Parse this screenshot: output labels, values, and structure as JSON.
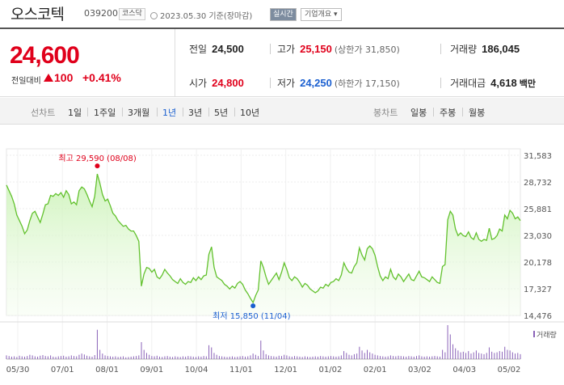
{
  "header": {
    "name": "오스코텍",
    "code": "039200",
    "market": "코스닥",
    "date": "2023.05.30 기준(장마감)",
    "live_btn": "실시간",
    "company_btn": "기업개요 ▾"
  },
  "summary": {
    "price": "24,600",
    "change_label": "전일대비",
    "change_value": "100",
    "change_pct": "+0.41%",
    "prev_label": "전일",
    "prev_value": "24,500",
    "high_label": "고가",
    "high_value": "25,150",
    "high_sub": "(상한가 31,850)",
    "volume_label": "거래량",
    "volume_value": "186,045",
    "open_label": "시가",
    "open_value": "24,800",
    "low_label": "저가",
    "low_value": "24,250",
    "low_sub": "(하한가 17,150)",
    "amount_label": "거래대금",
    "amount_value": "4,618",
    "amount_unit": "백만"
  },
  "tabs": {
    "line_label": "선차트",
    "periods": [
      "1일",
      "1주일",
      "3개월",
      "1년",
      "3년",
      "5년",
      "10년"
    ],
    "active": "1년",
    "candle_label": "봉차트",
    "candles": [
      "일봉",
      "주봉",
      "월봉"
    ]
  },
  "chart_data": {
    "type": "area",
    "y_ticks": [
      "31,583",
      "28,732",
      "25,881",
      "23,030",
      "20,178",
      "17,327",
      "14,476"
    ],
    "ylim": [
      14476,
      31583
    ],
    "x_ticks": [
      "05/30",
      "07/01",
      "08/01",
      "09/01",
      "10/04",
      "11/01",
      "12/01",
      "01/02",
      "02/01",
      "03/02",
      "04/03",
      "05/02"
    ],
    "high_annotation": "최고 29,590 (08/08)",
    "low_annotation": "최저 15,850 (11/04)",
    "volume_legend": "거래량",
    "series": [
      {
        "values": [
          28400,
          27800,
          27200,
          26400,
          25200,
          24600,
          24000,
          23200,
          23600,
          24600,
          25400,
          25600,
          25000,
          24400,
          25300,
          26300,
          26400,
          27300,
          27200,
          27500,
          27300,
          27600,
          27100,
          27800,
          27400,
          26400,
          26600,
          26300,
          27800,
          28200,
          28000,
          27400,
          26700,
          26100,
          27200,
          29590,
          28600,
          27400,
          26700,
          26900,
          26200,
          25400,
          25100,
          24600,
          24300,
          24000,
          24100,
          23700,
          23500,
          23500,
          23000,
          22400,
          17600,
          18900,
          19600,
          19500,
          19100,
          19400,
          18600,
          18400,
          18800,
          19400,
          19000,
          18700,
          18300,
          18100,
          17900,
          18400,
          18000,
          17800,
          18100,
          18000,
          18500,
          18200,
          18600,
          18300,
          18700,
          18800,
          21000,
          21800,
          19600,
          18600,
          18400,
          18200,
          17800,
          17600,
          17300,
          17600,
          17400,
          17900,
          18100,
          17800,
          17200,
          16800,
          16300,
          15850,
          16600,
          17200,
          20300,
          19600,
          18600,
          17800,
          18200,
          18600,
          19000,
          18300,
          19100,
          20100,
          19400,
          18500,
          18200,
          18600,
          18400,
          18000,
          17500,
          17900,
          17700,
          17300,
          17100,
          16900,
          17100,
          17500,
          17400,
          17800,
          17600,
          18000,
          18100,
          18400,
          18200,
          18800,
          20100,
          19500,
          19100,
          19000,
          19700,
          20100,
          21700,
          20900,
          20400,
          21600,
          21900,
          21600,
          20900,
          19700,
          18700,
          18200,
          18600,
          18400,
          19400,
          18600,
          18300,
          18900,
          18600,
          18100,
          18500,
          18900,
          18300,
          18200,
          18700,
          19200,
          18600,
          18500,
          18300,
          18100,
          18600,
          18300,
          18000,
          17900,
          19700,
          19900,
          24700,
          25600,
          25200,
          23700,
          23000,
          23300,
          23000,
          22900,
          23400,
          22800,
          22600,
          23300,
          22600,
          22400,
          22600,
          22500,
          23800,
          22600,
          22700,
          23000,
          23700,
          23500,
          25200,
          24800,
          25700,
          25400,
          24800,
          25000,
          24600
        ]
      }
    ],
    "volume": [
      12,
      10,
      8,
      9,
      7,
      11,
      9,
      8,
      10,
      14,
      12,
      9,
      8,
      11,
      13,
      10,
      9,
      12,
      8,
      7,
      9,
      10,
      11,
      8,
      9,
      12,
      10,
      9,
      14,
      18,
      15,
      11,
      9,
      8,
      13,
      95,
      30,
      18,
      12,
      10,
      9,
      8,
      9,
      7,
      8,
      9,
      6,
      7,
      8,
      9,
      10,
      12,
      55,
      30,
      20,
      14,
      10,
      9,
      11,
      8,
      7,
      9,
      10,
      8,
      7,
      9,
      8,
      7,
      9,
      8,
      10,
      9,
      8,
      7,
      9,
      8,
      10,
      9,
      45,
      38,
      20,
      14,
      10,
      9,
      8,
      7,
      8,
      9,
      7,
      8,
      9,
      10,
      8,
      9,
      12,
      18,
      14,
      10,
      60,
      28,
      16,
      12,
      10,
      9,
      8,
      11,
      10,
      14,
      12,
      9,
      8,
      10,
      9,
      8,
      7,
      9,
      8,
      7,
      8,
      9,
      8,
      10,
      9,
      8,
      9,
      10,
      9,
      8,
      9,
      12,
      26,
      20,
      14,
      12,
      16,
      18,
      40,
      28,
      20,
      30,
      22,
      18,
      14,
      12,
      10,
      9,
      8,
      9,
      12,
      10,
      9,
      11,
      10,
      9,
      8,
      10,
      9,
      8,
      10,
      12,
      9,
      8,
      9,
      8,
      9,
      10,
      9,
      8,
      30,
      22,
      110,
      80,
      48,
      35,
      28,
      22,
      24,
      20,
      26,
      18,
      22,
      28,
      20,
      18,
      16,
      20,
      38,
      24,
      20,
      22,
      26,
      24,
      40,
      30,
      28,
      22,
      18,
      20,
      16
    ]
  }
}
